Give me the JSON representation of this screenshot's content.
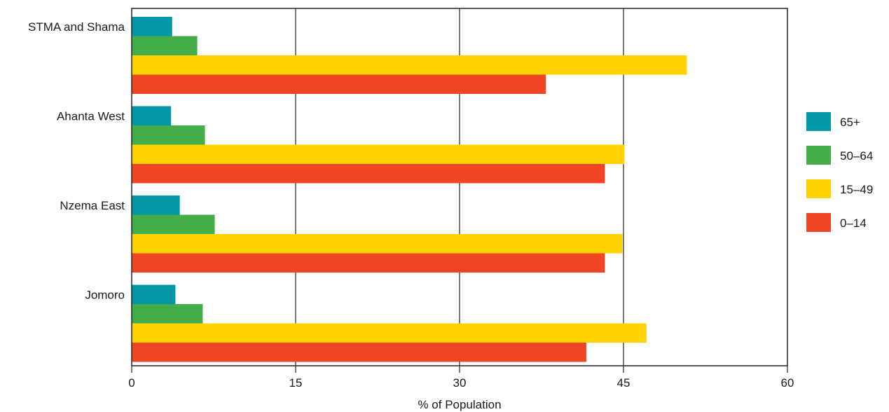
{
  "chart_data": {
    "type": "bar",
    "orientation": "horizontal",
    "categories": [
      "STMA and Shama",
      "Ahanta West",
      "Nzema East",
      "Jomoro"
    ],
    "series": [
      {
        "name": "65+",
        "color": "#0097a7",
        "values": [
          3.7,
          3.6,
          4.4,
          4.0
        ]
      },
      {
        "name": "50–64",
        "color": "#44ad4a",
        "values": [
          6.0,
          6.7,
          7.6,
          6.5
        ]
      },
      {
        "name": "15–49",
        "color": "#ffd200",
        "values": [
          50.8,
          45.1,
          44.9,
          47.1
        ]
      },
      {
        "name": "0–14",
        "color": "#ef4526",
        "values": [
          37.9,
          43.3,
          43.3,
          41.6
        ]
      }
    ],
    "xlabel": "% of Population",
    "ylabel": "",
    "xlim": [
      0,
      60
    ],
    "xticks": [
      0,
      15,
      30,
      45,
      60
    ],
    "grid": "vertical",
    "legend_position": "right",
    "legend_order": [
      "65+",
      "50–64",
      "15–49",
      "0–14"
    ]
  }
}
